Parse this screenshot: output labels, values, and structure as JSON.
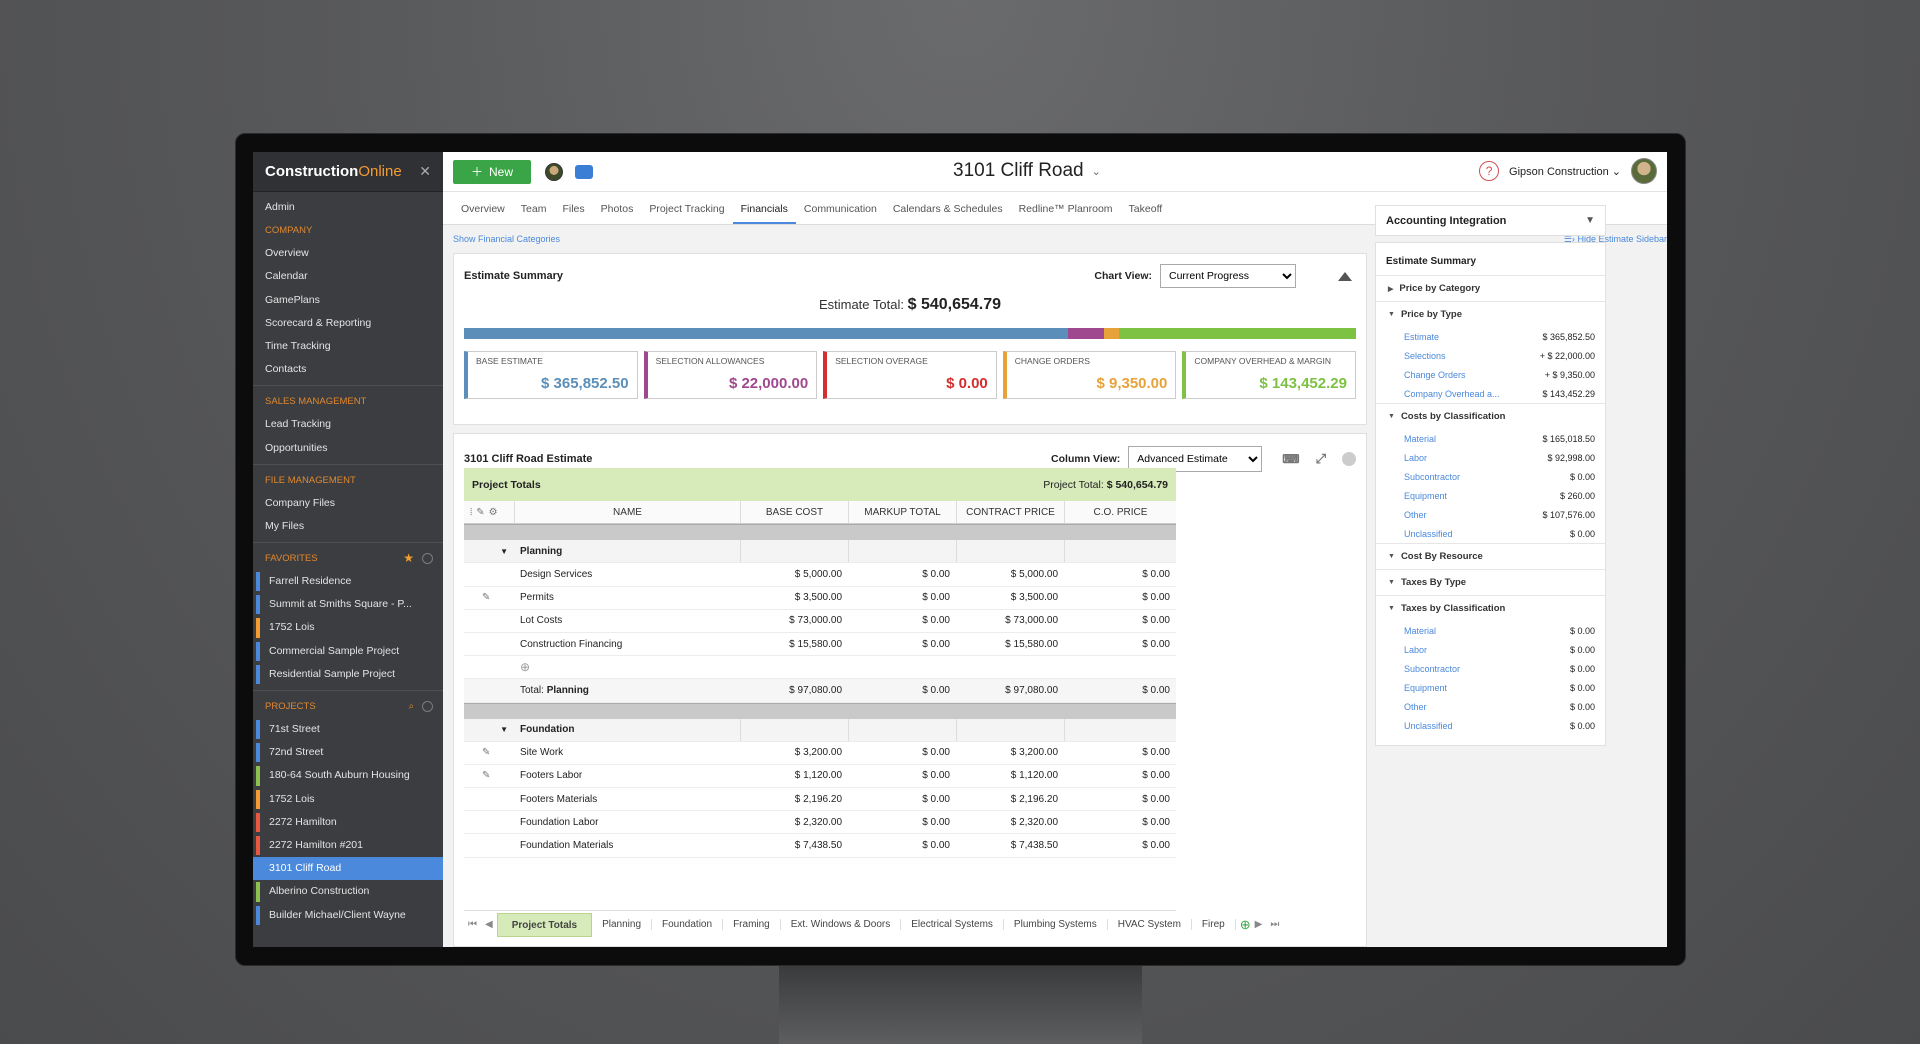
{
  "app": {
    "logo_main": "Construction",
    "logo_accent": "Online"
  },
  "sidebar": {
    "top": [
      "Admin"
    ],
    "company_head": "COMPANY",
    "company": [
      "Overview",
      "Calendar",
      "GamePlans",
      "Scorecard & Reporting",
      "Time Tracking",
      "Contacts"
    ],
    "sales_head": "SALES MANAGEMENT",
    "sales": [
      "Lead Tracking",
      "Opportunities"
    ],
    "files_head": "FILE MANAGEMENT",
    "files": [
      "Company Files",
      "My Files"
    ],
    "fav_head": "FAVORITES",
    "favorites": [
      {
        "label": "Farrell Residence",
        "color": "#4a89dc"
      },
      {
        "label": "Summit at Smiths Square - P...",
        "color": "#4a89dc"
      },
      {
        "label": "1752 Lois",
        "color": "#f39c34"
      },
      {
        "label": "Commercial Sample Project",
        "color": "#4a89dc"
      },
      {
        "label": "Residential Sample Project",
        "color": "#4a89dc"
      }
    ],
    "proj_head": "PROJECTS",
    "projects": [
      {
        "label": "71st Street",
        "color": "#4a89dc"
      },
      {
        "label": "72nd Street",
        "color": "#4a89dc"
      },
      {
        "label": "180-64 South Auburn Housing",
        "color": "#8cc152"
      },
      {
        "label": "1752 Lois",
        "color": "#f39c34"
      },
      {
        "label": "2272 Hamilton",
        "color": "#e9573f"
      },
      {
        "label": "2272 Hamilton #201",
        "color": "#e9573f"
      },
      {
        "label": "3101 Cliff Road",
        "color": "#4a89dc",
        "active": true
      },
      {
        "label": "Alberino Construction",
        "color": "#8cc152"
      },
      {
        "label": "Builder Michael/Client Wayne",
        "color": "#4a89dc"
      }
    ]
  },
  "topbar": {
    "new_label": "New",
    "project_title": "3101 Cliff Road",
    "company": "Gipson Construction",
    "help": "?"
  },
  "tabs": [
    "Overview",
    "Team",
    "Files",
    "Photos",
    "Project Tracking",
    "Financials",
    "Communication",
    "Calendars & Schedules",
    "Redline™ Planroom",
    "Takeoff"
  ],
  "active_tab": "Financials",
  "subbar": {
    "left": "Show Financial Categories",
    "right": "Hide Estimate Sidebar"
  },
  "summary": {
    "title": "Estimate Summary",
    "chart_view_label": "Chart View:",
    "chart_view_value": "Current Progress",
    "total_label": "Estimate Total:",
    "total_value": "$ 540,654.79",
    "segments": [
      {
        "label": "BASE ESTIMATE",
        "value": "$ 365,852.50",
        "amount": 365852.5,
        "color": "#5b8fb9"
      },
      {
        "label": "SELECTION ALLOWANCES",
        "value": "$ 22,000.00",
        "amount": 22000.0,
        "color": "#a0488f"
      },
      {
        "label": "SELECTION OVERAGE",
        "value": "$ 0.00",
        "amount": 0,
        "color": "#d42e2e"
      },
      {
        "label": "CHANGE ORDERS",
        "value": "$ 9,350.00",
        "amount": 9350.0,
        "color": "#e8a23a"
      },
      {
        "label": "COMPANY OVERHEAD & MARGIN",
        "value": "$ 143,452.29",
        "amount": 143452.29,
        "color": "#7dc242"
      }
    ]
  },
  "estimate": {
    "title": "3101 Cliff Road Estimate",
    "column_view_label": "Column View:",
    "column_view_value": "Advanced Estimate",
    "band_label": "Project Totals",
    "band_total_label": "Project Total:",
    "band_total_value": "$ 540,654.79",
    "headers": [
      "NAME",
      "BASE COST",
      "MARKUP TOTAL",
      "CONTRACT PRICE",
      "C.O. PRICE"
    ],
    "sections": [
      {
        "name": "Planning",
        "rows": [
          {
            "name": "Design Services",
            "base": "$ 5,000.00",
            "markup": "$ 0.00",
            "contract": "$ 5,000.00",
            "co": "$ 0.00",
            "note": false
          },
          {
            "name": "Permits",
            "base": "$ 3,500.00",
            "markup": "$ 0.00",
            "contract": "$ 3,500.00",
            "co": "$ 0.00",
            "note": true
          },
          {
            "name": "Lot Costs",
            "base": "$ 73,000.00",
            "markup": "$ 0.00",
            "contract": "$ 73,000.00",
            "co": "$ 0.00",
            "note": false
          },
          {
            "name": "Construction Financing",
            "base": "$ 15,580.00",
            "markup": "$ 0.00",
            "contract": "$ 15,580.00",
            "co": "$ 0.00",
            "note": false
          }
        ],
        "total_label": "Total:",
        "total": {
          "base": "$ 97,080.00",
          "markup": "$ 0.00",
          "contract": "$ 97,080.00",
          "co": "$ 0.00"
        }
      },
      {
        "name": "Foundation",
        "rows": [
          {
            "name": "Site Work",
            "base": "$ 3,200.00",
            "markup": "$ 0.00",
            "contract": "$ 3,200.00",
            "co": "$ 0.00",
            "note": true
          },
          {
            "name": "Footers Labor",
            "base": "$ 1,120.00",
            "markup": "$ 0.00",
            "contract": "$ 1,120.00",
            "co": "$ 0.00",
            "note": true
          },
          {
            "name": "Footers Materials",
            "base": "$ 2,196.20",
            "markup": "$ 0.00",
            "contract": "$ 2,196.20",
            "co": "$ 0.00",
            "note": false
          },
          {
            "name": "Foundation Labor",
            "base": "$ 2,320.00",
            "markup": "$ 0.00",
            "contract": "$ 2,320.00",
            "co": "$ 0.00",
            "note": false
          },
          {
            "name": "Foundation Materials",
            "base": "$ 7,438.50",
            "markup": "$ 0.00",
            "contract": "$ 7,438.50",
            "co": "$ 0.00",
            "note": false
          }
        ]
      }
    ],
    "bottom_tabs": [
      "Project Totals",
      "Planning",
      "Foundation",
      "Framing",
      "Ext. Windows & Doors",
      "Electrical Systems",
      "Plumbing Systems",
      "HVAC System",
      "Firep"
    ]
  },
  "accounting": {
    "title": "Accounting Integration",
    "summary_title": "Estimate Summary",
    "groups": [
      {
        "label": "Price by Category",
        "open": false,
        "items": []
      },
      {
        "label": "Price by Type",
        "open": true,
        "items": [
          {
            "k": "Estimate",
            "v": "$ 365,852.50"
          },
          {
            "k": "Selections",
            "v": "+ $ 22,000.00"
          },
          {
            "k": "Change Orders",
            "v": "+ $ 9,350.00"
          },
          {
            "k": "Company Overhead a...",
            "v": "$ 143,452.29"
          }
        ]
      },
      {
        "label": "Costs by Classification",
        "open": true,
        "items": [
          {
            "k": "Material",
            "v": "$ 165,018.50"
          },
          {
            "k": "Labor",
            "v": "$ 92,998.00"
          },
          {
            "k": "Subcontractor",
            "v": "$ 0.00"
          },
          {
            "k": "Equipment",
            "v": "$ 260.00"
          },
          {
            "k": "Other",
            "v": "$ 107,576.00"
          },
          {
            "k": "Unclassified",
            "v": "$ 0.00"
          }
        ]
      },
      {
        "label": "Cost By Resource",
        "open": true,
        "items": []
      },
      {
        "label": "Taxes By Type",
        "open": true,
        "items": []
      },
      {
        "label": "Taxes by Classification",
        "open": true,
        "items": [
          {
            "k": "Material",
            "v": "$ 0.00"
          },
          {
            "k": "Labor",
            "v": "$ 0.00"
          },
          {
            "k": "Subcontractor",
            "v": "$ 0.00"
          },
          {
            "k": "Equipment",
            "v": "$ 0.00"
          },
          {
            "k": "Other",
            "v": "$ 0.00"
          },
          {
            "k": "Unclassified",
            "v": "$ 0.00"
          }
        ]
      }
    ]
  }
}
